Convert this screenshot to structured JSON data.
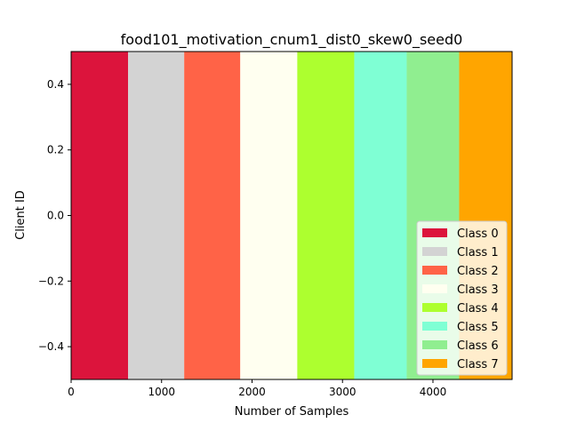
{
  "chart_data": {
    "type": "bar",
    "orientation": "horizontal-stacked",
    "title": "food101_motivation_cnum1_dist0_skew0_seed0",
    "xlabel": "Number of Samples",
    "ylabel": "Client ID",
    "xlim": [
      0,
      4875
    ],
    "ylim": [
      -0.5,
      0.5
    ],
    "xticks": [
      0,
      1000,
      2000,
      3000,
      4000
    ],
    "xtick_labels": [
      "0",
      "1000",
      "2000",
      "3000",
      "4000"
    ],
    "yticks": [
      0.4,
      0.2,
      0.0,
      -0.2,
      -0.4
    ],
    "ytick_labels": [
      "0.4",
      "0.2",
      "0.0",
      "−0.2",
      "−0.4"
    ],
    "legend_position": "lower-right",
    "categories": [
      "0"
    ],
    "series": [
      {
        "name": "Class 0",
        "color": "#dc143c",
        "values": [
          630
        ]
      },
      {
        "name": "Class 1",
        "color": "#d3d3d3",
        "values": [
          620
        ]
      },
      {
        "name": "Class 2",
        "color": "#ff6347",
        "values": [
          620
        ]
      },
      {
        "name": "Class 3",
        "color": "#fffff0",
        "values": [
          630
        ]
      },
      {
        "name": "Class 4",
        "color": "#adff2f",
        "values": [
          630
        ]
      },
      {
        "name": "Class 5",
        "color": "#7fffd4",
        "values": [
          580
        ]
      },
      {
        "name": "Class 6",
        "color": "#90ee90",
        "values": [
          580
        ]
      },
      {
        "name": "Class 7",
        "color": "#ffa500",
        "values": [
          585
        ]
      }
    ]
  }
}
